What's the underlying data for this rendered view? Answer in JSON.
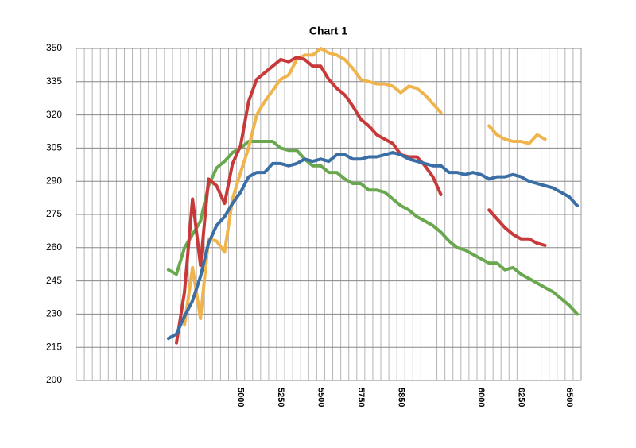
{
  "chart_data": {
    "type": "line",
    "title": "Chart 1",
    "categories": [
      null,
      null,
      null,
      null,
      null,
      null,
      null,
      null,
      null,
      null,
      null,
      null,
      null,
      null,
      null,
      null,
      null,
      null,
      null,
      null,
      "5000",
      null,
      null,
      null,
      null,
      "5250",
      null,
      null,
      null,
      null,
      "5500",
      null,
      null,
      null,
      null,
      "5750",
      null,
      null,
      null,
      null,
      "5850",
      null,
      null,
      null,
      null,
      null,
      null,
      null,
      null,
      null,
      "6000",
      null,
      null,
      null,
      null,
      "6250",
      null,
      null,
      null,
      null,
      null,
      "6500",
      null
    ],
    "series": [
      {
        "color": "#6aa84f",
        "values": [
          null,
          null,
          null,
          null,
          null,
          null,
          null,
          null,
          null,
          null,
          null,
          250,
          248,
          260,
          266,
          272,
          288,
          296,
          299,
          303,
          305,
          308,
          308,
          308,
          308,
          305,
          304,
          304,
          300,
          297,
          297,
          294,
          294,
          291,
          289,
          289,
          286,
          286,
          285,
          282,
          279,
          277,
          274,
          272,
          270,
          267,
          263,
          260,
          259,
          257,
          255,
          253,
          253,
          250,
          251,
          248,
          246,
          244,
          242,
          240,
          237,
          234,
          230
        ]
      },
      {
        "color": "#f0b44c",
        "values": [
          null,
          null,
          null,
          null,
          null,
          null,
          null,
          null,
          null,
          null,
          null,
          null,
          null,
          225,
          251,
          228,
          264,
          263,
          258,
          282,
          294,
          305,
          320,
          326,
          331,
          336,
          338,
          345,
          347,
          347,
          350,
          348,
          347,
          345,
          341,
          336,
          335,
          334,
          334,
          333,
          330,
          333,
          332,
          329,
          325,
          321,
          null,
          null,
          null,
          null,
          null,
          315,
          311,
          309,
          308,
          308,
          307,
          311,
          309,
          null,
          null,
          null,
          null
        ]
      },
      {
        "color": "#c8393a",
        "values": [
          null,
          null,
          null,
          null,
          null,
          null,
          null,
          null,
          null,
          null,
          null,
          null,
          217,
          240,
          282,
          252,
          291,
          288,
          280,
          298,
          306,
          326,
          336,
          339,
          342,
          345,
          344,
          346,
          345,
          342,
          342,
          336,
          332,
          329,
          324,
          318,
          315,
          311,
          309,
          307,
          302,
          301,
          301,
          297,
          292,
          284,
          null,
          null,
          null,
          null,
          null,
          277,
          273,
          269,
          266,
          264,
          264,
          262,
          261,
          null,
          null,
          null,
          null
        ]
      },
      {
        "color": "#3a6ea5",
        "values": [
          null,
          null,
          null,
          null,
          null,
          null,
          null,
          null,
          null,
          null,
          null,
          219,
          221,
          229,
          236,
          247,
          262,
          270,
          274,
          280,
          285,
          292,
          294,
          294,
          298,
          298,
          297,
          298,
          300,
          299,
          300,
          299,
          302,
          302,
          300,
          300,
          301,
          301,
          302,
          303,
          302,
          300,
          299,
          298,
          297,
          297,
          294,
          294,
          293,
          294,
          293,
          291,
          292,
          292,
          293,
          292,
          290,
          289,
          288,
          287,
          285,
          283,
          279
        ]
      }
    ],
    "ylim": [
      200,
      350
    ],
    "yticks": [
      200,
      215,
      230,
      245,
      260,
      275,
      290,
      305,
      320,
      335,
      350
    ],
    "grid": true
  }
}
